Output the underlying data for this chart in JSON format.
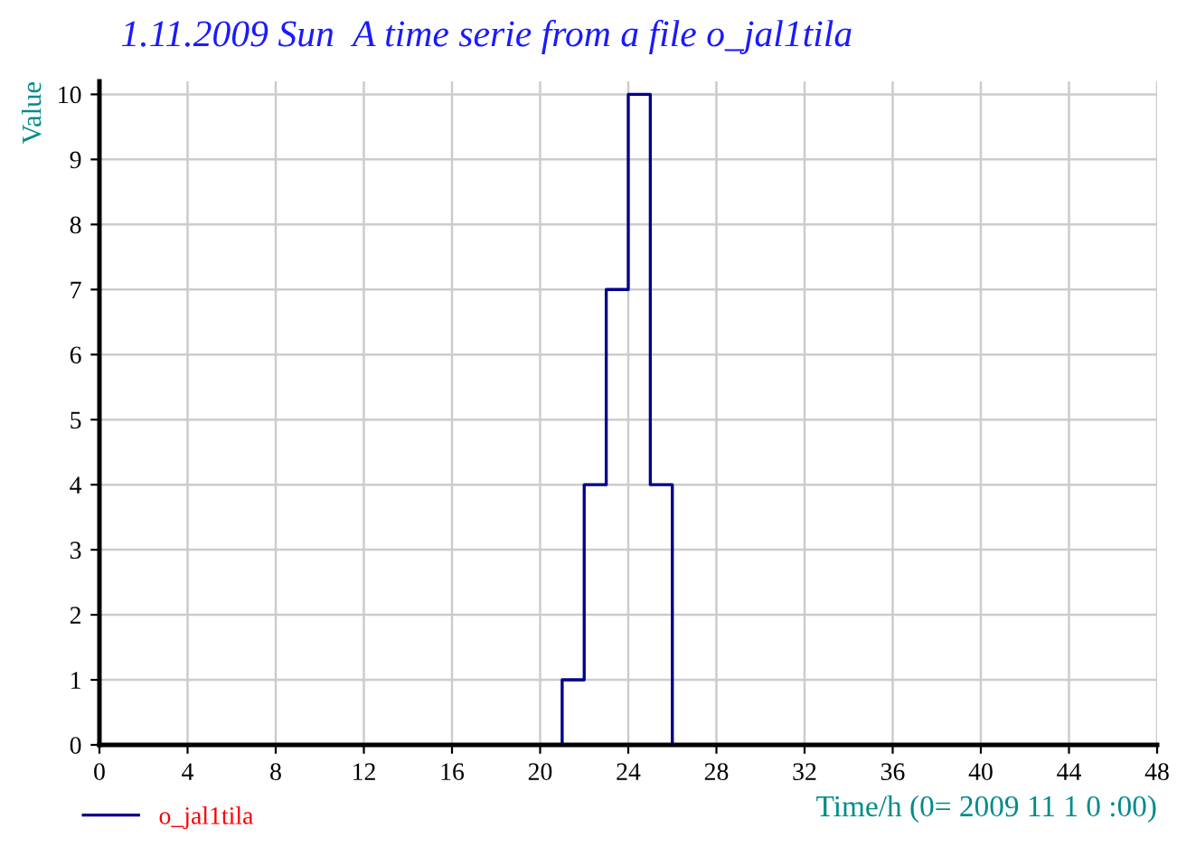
{
  "chart_data": {
    "type": "step",
    "title": "1.11.2009 Sun  A time serie from a file o_jal1tila",
    "xlabel": "Time/h (0= 2009 11 1 0 :00)",
    "ylabel": "Value",
    "x": [
      0,
      21,
      22,
      23,
      24,
      25,
      26,
      48
    ],
    "series": [
      {
        "name": "o_jal1tila",
        "color": "#00008b",
        "values": [
          0,
          1,
          4,
          7,
          10,
          4,
          0,
          0
        ]
      }
    ],
    "xlim": [
      0,
      48
    ],
    "xticks": [
      0,
      4,
      8,
      12,
      16,
      20,
      24,
      28,
      32,
      36,
      40,
      44,
      48
    ],
    "ylim": [
      0,
      10.2
    ],
    "yticks": [
      0,
      1,
      2,
      3,
      4,
      5,
      6,
      7,
      8,
      9,
      10
    ],
    "grid": true,
    "legend": "bottom left",
    "marker": "none",
    "line_style": "solid"
  }
}
